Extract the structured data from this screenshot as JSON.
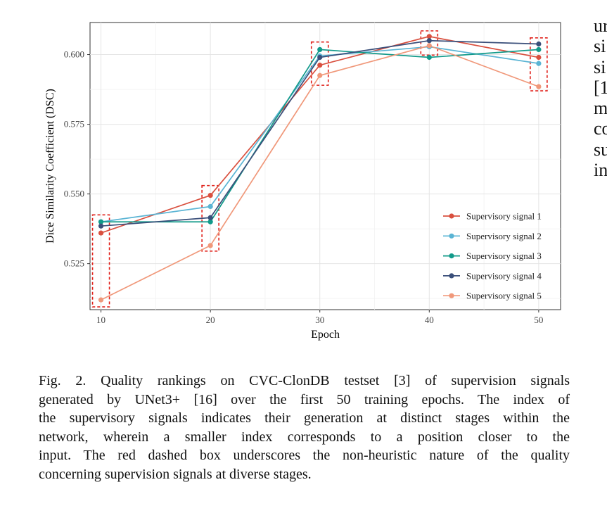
{
  "side_text": [
    "ur",
    "si",
    "si",
    "[1",
    "m",
    "co",
    "su",
    "in"
  ],
  "caption": {
    "lines": [
      "Fig. 2.  Quality rankings on CVC-ClonDB testset [3] of supervision signals",
      "generated by UNet3+ [16] over the first 50 training epochs. The index of",
      "the supervisory signals indicates their generation at distinct stages within the",
      "network, wherein a smaller index corresponds to a position closer to the",
      "input. The red dashed box underscores the non-heuristic nature of the quality",
      "concerning supervision signals at diverse stages."
    ]
  },
  "chart_data": {
    "type": "line",
    "xlabel": "Epoch",
    "ylabel": "Dice Similarity Coefficient (DSC)",
    "x": [
      10,
      20,
      30,
      40,
      50
    ],
    "x_ticks": [
      "10",
      "20",
      "30",
      "40",
      "50"
    ],
    "y_ticks": [
      "0.525",
      "0.550",
      "0.575",
      "0.600"
    ],
    "y_tick_values": [
      0.525,
      0.55,
      0.575,
      0.6
    ],
    "xlim": [
      9,
      52
    ],
    "ylim": [
      0.5085,
      0.6115
    ],
    "grid": true,
    "legend_position": "bottom-right",
    "series": [
      {
        "name": "Supervisory signal 1",
        "color": "#d9503f",
        "values": [
          0.536,
          0.5495,
          0.5962,
          0.6065,
          0.599
        ]
      },
      {
        "name": "Supervisory signal 2",
        "color": "#5ab4d4",
        "values": [
          0.54,
          0.5455,
          0.5995,
          0.6028,
          0.5968
        ]
      },
      {
        "name": "Supervisory signal 3",
        "color": "#129a8a",
        "values": [
          0.54,
          0.54,
          0.6018,
          0.599,
          0.6018
        ]
      },
      {
        "name": "Supervisory signal 4",
        "color": "#3a4f7a",
        "values": [
          0.5385,
          0.5415,
          0.599,
          0.605,
          0.6038
        ]
      },
      {
        "name": "Supervisory signal 5",
        "color": "#f0987a",
        "values": [
          0.512,
          0.5315,
          0.5925,
          0.6032,
          0.5885
        ]
      }
    ],
    "highlight_boxes": [
      {
        "x": 10,
        "y_range": [
          0.5095,
          0.5425
        ]
      },
      {
        "x": 20,
        "y_range": [
          0.5295,
          0.553
        ]
      },
      {
        "x": 30,
        "y_range": [
          0.589,
          0.6045
        ]
      },
      {
        "x": 40,
        "y_range": [
          0.5998,
          0.6085
        ]
      },
      {
        "x": 50,
        "y_range": [
          0.587,
          0.606
        ]
      }
    ],
    "highlight_color": "#e0201a"
  }
}
